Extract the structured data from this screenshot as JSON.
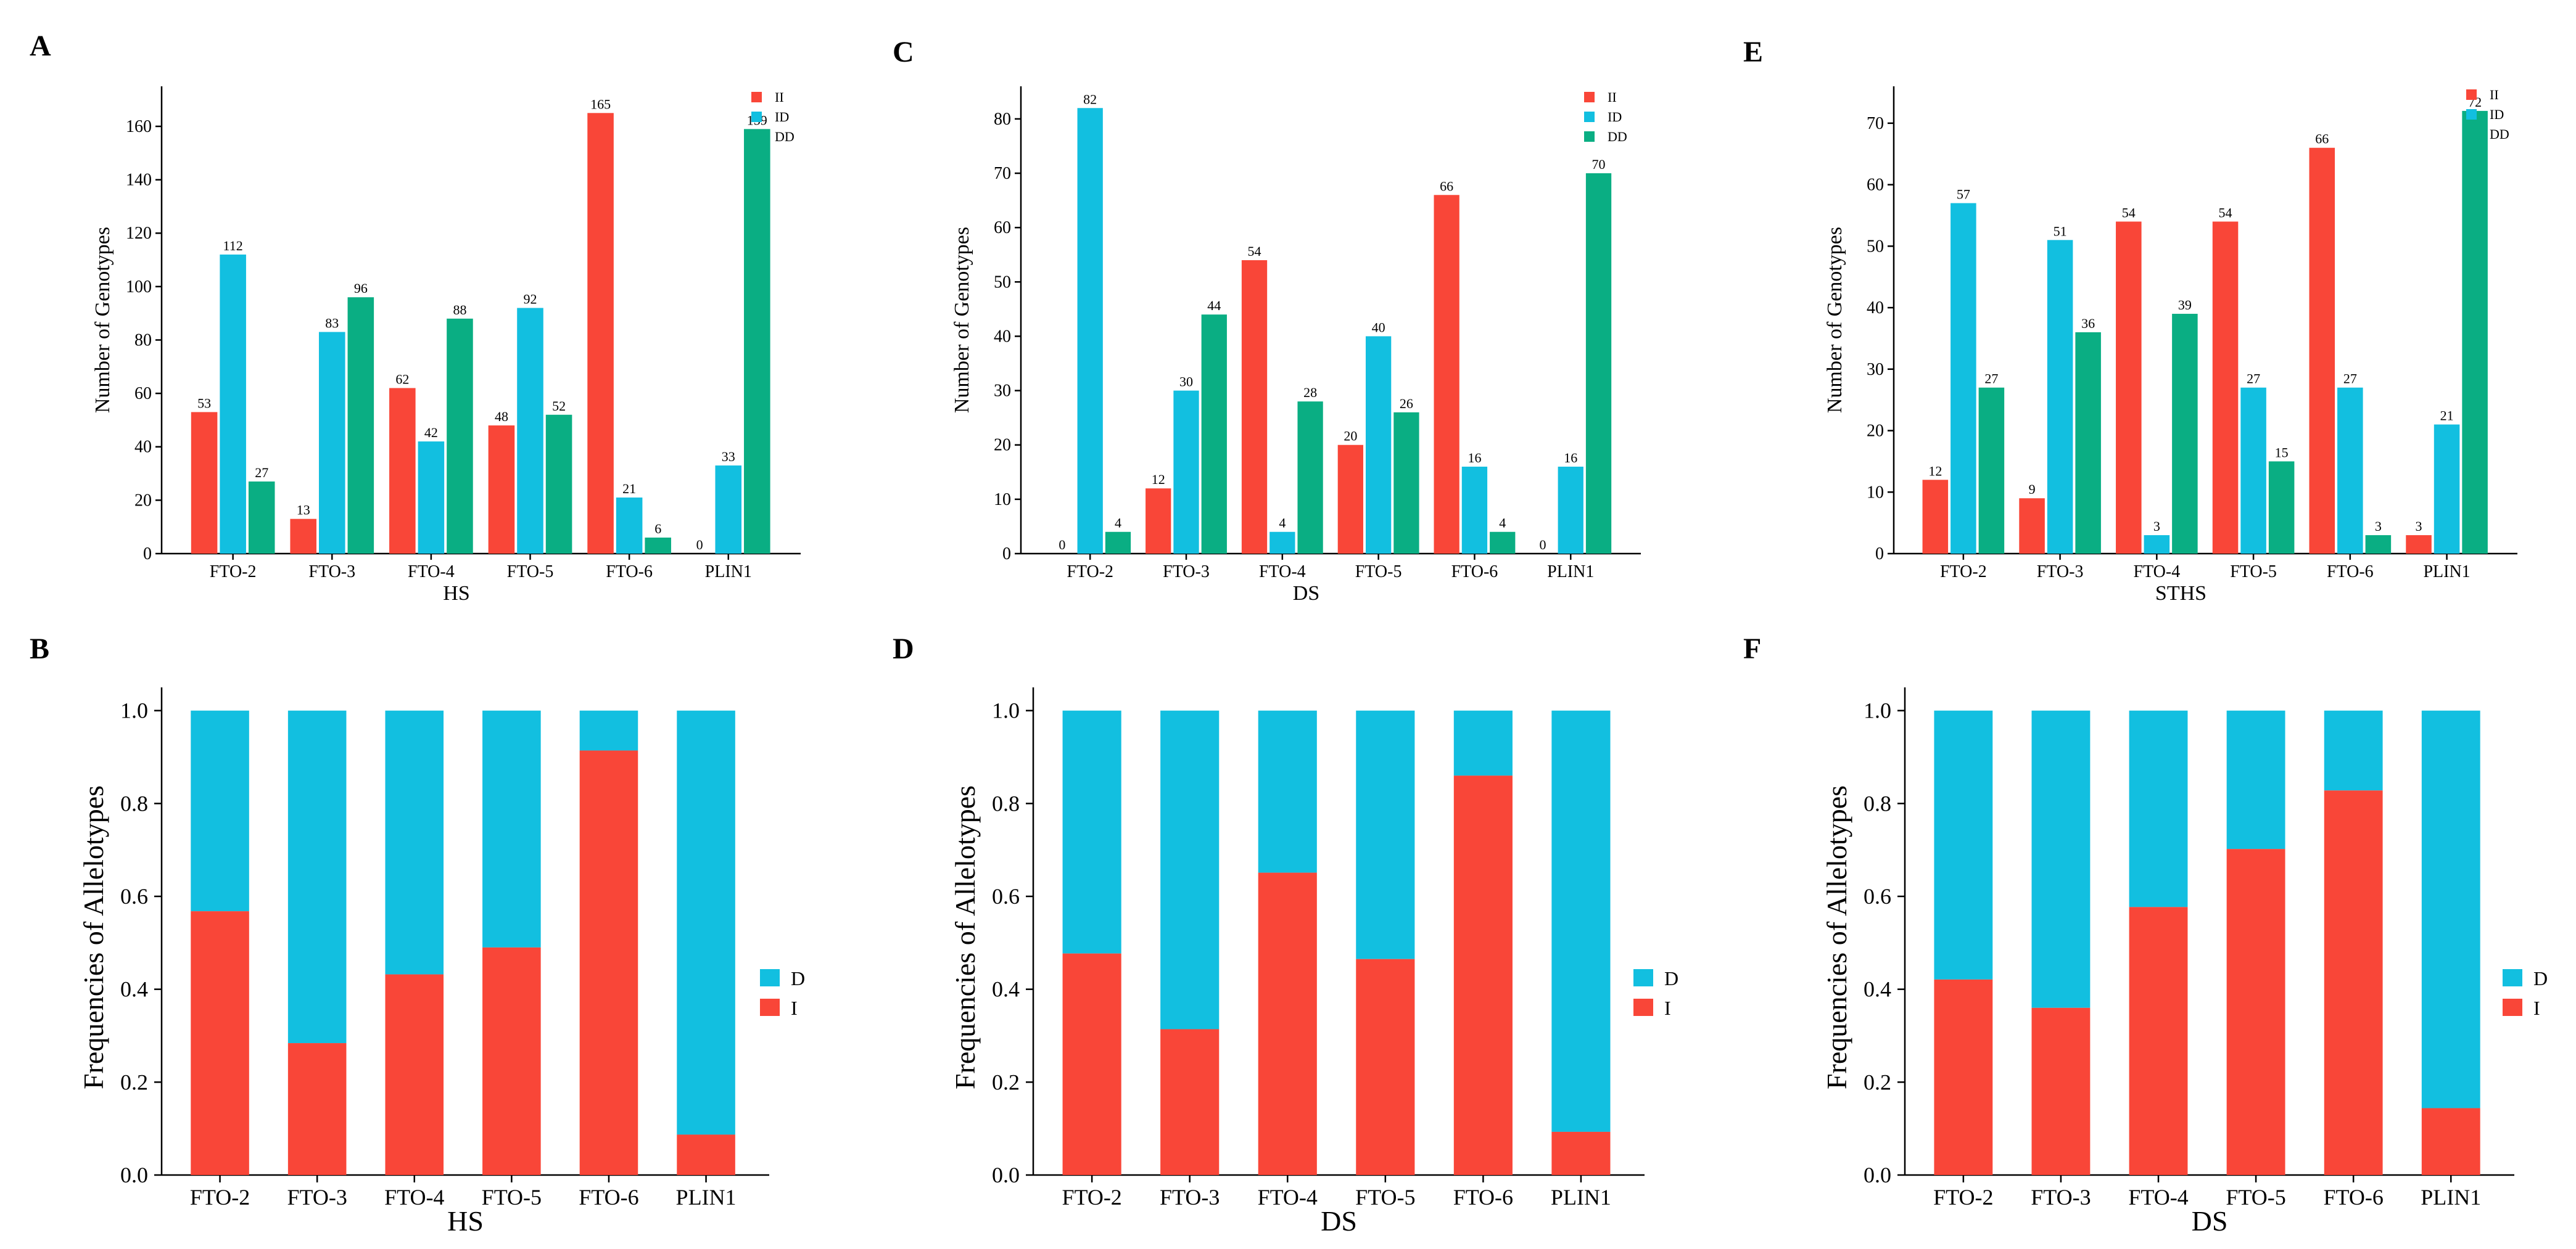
{
  "colors": {
    "II": "#f94638",
    "ID": "#12bfe0",
    "DD": "#0aae83",
    "I": "#f94638",
    "D": "#12bfe0"
  },
  "chart_data": [
    {
      "type": "bar",
      "panel": "A",
      "xlabel": "HS",
      "ylabel": "Number of Genotypes",
      "ylim": [
        0,
        175
      ],
      "yticks": [
        0,
        20,
        40,
        60,
        80,
        100,
        120,
        140,
        160
      ],
      "categories": [
        "FTO-2",
        "FTO-3",
        "FTO-4",
        "FTO-5",
        "FTO-6",
        "PLIN1"
      ],
      "legend": [
        "II",
        "ID",
        "DD"
      ],
      "series": [
        {
          "name": "II",
          "values": [
            53,
            13,
            62,
            48,
            165,
            0
          ]
        },
        {
          "name": "ID",
          "values": [
            112,
            83,
            42,
            92,
            21,
            33
          ]
        },
        {
          "name": "DD",
          "values": [
            27,
            96,
            88,
            52,
            6,
            159
          ]
        }
      ]
    },
    {
      "type": "bar",
      "panel": "C",
      "xlabel": "DS",
      "ylabel": "Number of Genotypes",
      "ylim": [
        0,
        86
      ],
      "yticks": [
        0,
        10,
        20,
        30,
        40,
        50,
        60,
        70,
        80
      ],
      "categories": [
        "FTO-2",
        "FTO-3",
        "FTO-4",
        "FTO-5",
        "FTO-6",
        "PLIN1"
      ],
      "legend": [
        "II",
        "ID",
        "DD"
      ],
      "series": [
        {
          "name": "II",
          "values": [
            0,
            12,
            54,
            20,
            66,
            0
          ]
        },
        {
          "name": "ID",
          "values": [
            82,
            30,
            4,
            40,
            16,
            16
          ]
        },
        {
          "name": "DD",
          "values": [
            4,
            44,
            28,
            26,
            4,
            70
          ]
        }
      ]
    },
    {
      "type": "bar",
      "panel": "E",
      "xlabel": "STHS",
      "ylabel": "Number of Genotypes",
      "ylim": [
        0,
        76
      ],
      "yticks": [
        0,
        10,
        20,
        30,
        40,
        50,
        60,
        70
      ],
      "categories": [
        "FTO-2",
        "FTO-3",
        "FTO-4",
        "FTO-5",
        "FTO-6",
        "PLIN1"
      ],
      "legend": [
        "II",
        "ID",
        "DD"
      ],
      "series": [
        {
          "name": "II",
          "values": [
            12,
            9,
            54,
            54,
            66,
            3
          ]
        },
        {
          "name": "ID",
          "values": [
            57,
            51,
            3,
            27,
            27,
            21
          ]
        },
        {
          "name": "DD",
          "values": [
            27,
            36,
            39,
            15,
            3,
            72
          ]
        }
      ]
    },
    {
      "type": "stacked-bar",
      "panel": "B",
      "xlabel": "HS",
      "ylabel": "Frequencies of Allelotypes",
      "ylim": [
        0,
        1.05
      ],
      "yticks": [
        "0.0",
        "0.2",
        "0.4",
        "0.6",
        "0.8",
        "1.0"
      ],
      "categories": [
        "FTO-2",
        "FTO-3",
        "FTO-4",
        "FTO-5",
        "FTO-6",
        "PLIN1"
      ],
      "legend": [
        "D",
        "I"
      ],
      "series": [
        {
          "name": "I",
          "values": [
            0.568,
            0.284,
            0.432,
            0.49,
            0.914,
            0.087
          ]
        },
        {
          "name": "D",
          "values": [
            0.432,
            0.716,
            0.568,
            0.51,
            0.086,
            0.913
          ]
        }
      ]
    },
    {
      "type": "stacked-bar",
      "panel": "D",
      "xlabel": "DS",
      "ylabel": "Frequencies of Allelotypes",
      "ylim": [
        0,
        1.05
      ],
      "yticks": [
        "0.0",
        "0.2",
        "0.4",
        "0.6",
        "0.8",
        "1.0"
      ],
      "categories": [
        "FTO-2",
        "FTO-3",
        "FTO-4",
        "FTO-5",
        "FTO-6",
        "PLIN1"
      ],
      "legend": [
        "D",
        "I"
      ],
      "series": [
        {
          "name": "I",
          "values": [
            0.477,
            0.314,
            0.651,
            0.465,
            0.86,
            0.093
          ]
        },
        {
          "name": "D",
          "values": [
            0.523,
            0.686,
            0.349,
            0.535,
            0.14,
            0.907
          ]
        }
      ]
    },
    {
      "type": "stacked-bar",
      "panel": "F",
      "xlabel": "DS",
      "ylabel": "Frequencies of Allelotypes",
      "ylim": [
        0,
        1.05
      ],
      "yticks": [
        "0.0",
        "0.2",
        "0.4",
        "0.6",
        "0.8",
        "1.0"
      ],
      "categories": [
        "FTO-2",
        "FTO-3",
        "FTO-4",
        "FTO-5",
        "FTO-6",
        "PLIN1"
      ],
      "legend": [
        "D",
        "I"
      ],
      "series": [
        {
          "name": "I",
          "values": [
            0.421,
            0.36,
            0.577,
            0.702,
            0.828,
            0.144
          ]
        },
        {
          "name": "D",
          "values": [
            0.579,
            0.64,
            0.423,
            0.298,
            0.172,
            0.856
          ]
        }
      ]
    }
  ]
}
